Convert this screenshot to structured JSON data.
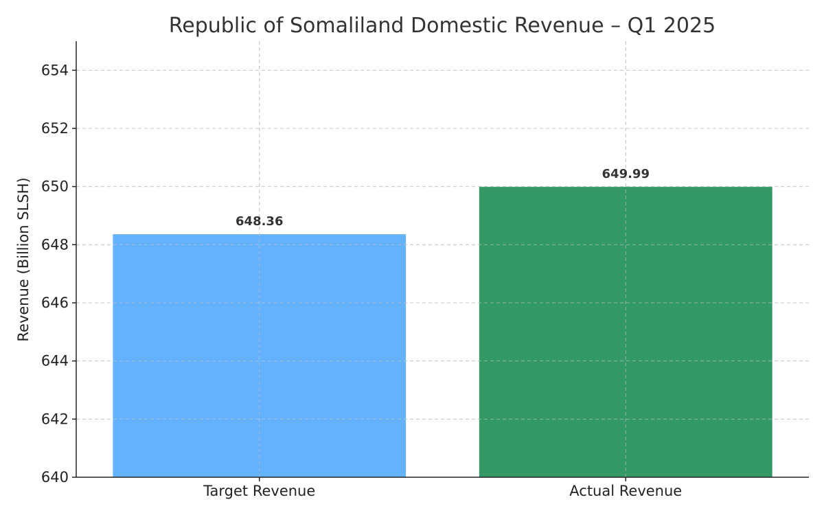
{
  "chart_data": {
    "type": "bar",
    "title": "Republic of Somaliland Domestic Revenue – Q1 2025",
    "xlabel": "",
    "ylabel": "Revenue (Billion SLSH)",
    "categories": [
      "Target Revenue",
      "Actual Revenue"
    ],
    "values": [
      648.36,
      649.99
    ],
    "data_labels": [
      "648.36",
      "649.99"
    ],
    "colors": [
      "#64b2fc",
      "#349967"
    ],
    "ylim": [
      640,
      655
    ],
    "yticks": [
      640,
      642,
      644,
      646,
      648,
      650,
      652,
      654
    ],
    "grid": true,
    "legend": "none"
  }
}
